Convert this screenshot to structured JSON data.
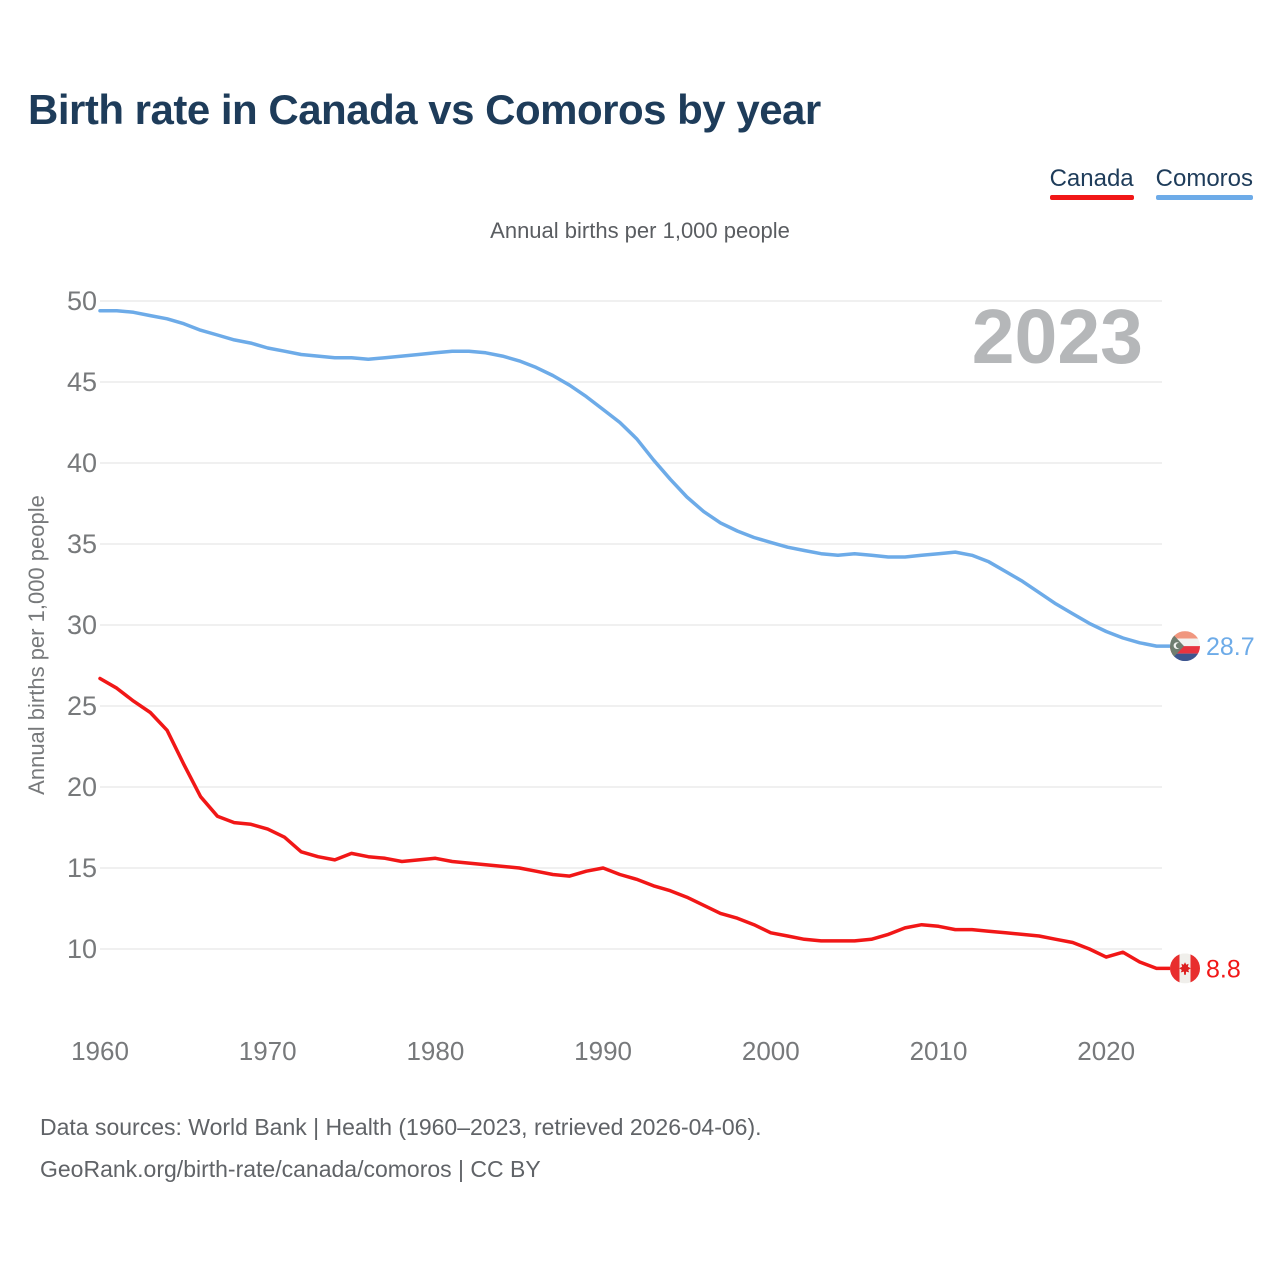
{
  "header": {
    "title": "Birth rate in Canada vs Comoros by year",
    "subtitle": "Annual births per 1,000 people"
  },
  "legend": {
    "items": [
      {
        "label": "Canada",
        "color": "#f11717"
      },
      {
        "label": "Comoros",
        "color": "#6dabe8"
      }
    ]
  },
  "watermark": "2023",
  "footer": {
    "line1": "Data sources: World Bank | Health (1960–2023, retrieved 2026-04-06).",
    "line2": "GeoRank.org/birth-rate/canada/comoros | CC BY"
  },
  "chart_data": {
    "type": "line",
    "title": "Birth rate in Canada vs Comoros by year",
    "subtitle": "Annual births per 1,000 people",
    "xlabel": "",
    "ylabel": "Annual births per 1,000 people",
    "x_ticks": [
      1960,
      1970,
      1980,
      1990,
      2000,
      2010,
      2020
    ],
    "y_ticks": [
      10,
      15,
      20,
      25,
      30,
      35,
      40,
      45,
      50
    ],
    "xlim": [
      1960,
      2023
    ],
    "ylim": [
      10,
      50
    ],
    "grid": "horizontal",
    "legend_position": "top-right",
    "years": [
      1960,
      1961,
      1962,
      1963,
      1964,
      1965,
      1966,
      1967,
      1968,
      1969,
      1970,
      1971,
      1972,
      1973,
      1974,
      1975,
      1976,
      1977,
      1978,
      1979,
      1980,
      1981,
      1982,
      1983,
      1984,
      1985,
      1986,
      1987,
      1988,
      1989,
      1990,
      1991,
      1992,
      1993,
      1994,
      1995,
      1996,
      1997,
      1998,
      1999,
      2000,
      2001,
      2002,
      2003,
      2004,
      2005,
      2006,
      2007,
      2008,
      2009,
      2010,
      2011,
      2012,
      2013,
      2014,
      2015,
      2016,
      2017,
      2018,
      2019,
      2020,
      2021,
      2022,
      2023
    ],
    "series": [
      {
        "name": "Comoros",
        "color": "#6dabe8",
        "end_label": "28.7",
        "flag": "comoros",
        "values": [
          49.4,
          49.4,
          49.3,
          49.1,
          48.9,
          48.6,
          48.2,
          47.9,
          47.6,
          47.4,
          47.1,
          46.9,
          46.7,
          46.6,
          46.5,
          46.5,
          46.4,
          46.5,
          46.6,
          46.7,
          46.8,
          46.9,
          46.9,
          46.8,
          46.6,
          46.3,
          45.9,
          45.4,
          44.8,
          44.1,
          43.3,
          42.5,
          41.5,
          40.2,
          39.0,
          37.9,
          37.0,
          36.3,
          35.8,
          35.4,
          35.1,
          34.8,
          34.6,
          34.4,
          34.3,
          34.4,
          34.3,
          34.2,
          34.2,
          34.3,
          34.4,
          34.5,
          34.3,
          33.9,
          33.3,
          32.7,
          32.0,
          31.3,
          30.7,
          30.1,
          29.6,
          29.2,
          28.9,
          28.7
        ]
      },
      {
        "name": "Canada",
        "color": "#f11717",
        "end_label": "8.8",
        "flag": "canada",
        "values": [
          26.7,
          26.1,
          25.3,
          24.6,
          23.5,
          21.4,
          19.4,
          18.2,
          17.8,
          17.7,
          17.4,
          16.9,
          16.0,
          15.7,
          15.5,
          15.9,
          15.7,
          15.6,
          15.4,
          15.5,
          15.6,
          15.4,
          15.3,
          15.2,
          15.1,
          15.0,
          14.8,
          14.6,
          14.5,
          14.8,
          15.0,
          14.6,
          14.3,
          13.9,
          13.6,
          13.2,
          12.7,
          12.2,
          11.9,
          11.5,
          11.0,
          10.8,
          10.6,
          10.5,
          10.5,
          10.5,
          10.6,
          10.9,
          11.3,
          11.5,
          11.4,
          11.2,
          11.2,
          11.1,
          11.0,
          10.9,
          10.8,
          10.6,
          10.4,
          10.0,
          9.5,
          9.8,
          9.2,
          8.8
        ]
      }
    ]
  }
}
